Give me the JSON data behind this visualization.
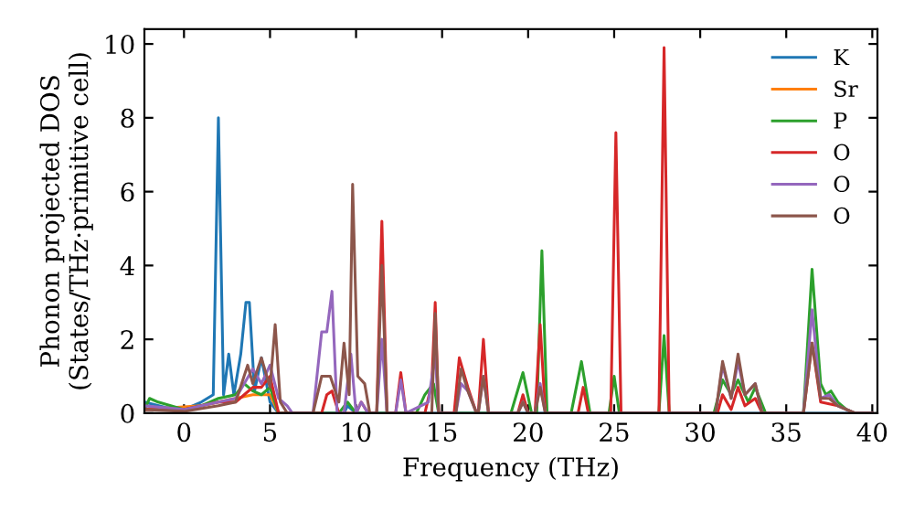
{
  "chart_data": {
    "type": "line",
    "xlabel": "Frequency (THz)",
    "ylabel": "Phonon projected DOS\n(States/THz·primitive cell)",
    "xlim": [
      -2.3,
      40.3
    ],
    "ylim": [
      0,
      10.4
    ],
    "xticks": [
      0,
      5,
      10,
      15,
      20,
      25,
      30,
      35,
      40
    ],
    "yticks": [
      0,
      2,
      4,
      6,
      8,
      10
    ],
    "grid": false,
    "legend": "top right",
    "marker": "none",
    "line_style": "solid",
    "series": [
      {
        "name": "K",
        "color": "#1f77b4",
        "x": [
          -2.3,
          -1,
          0,
          1,
          1.7,
          2,
          2.3,
          2.6,
          2.9,
          3.3,
          3.6,
          3.8,
          4.1,
          4.5,
          5,
          5.5,
          8,
          9.3,
          9.5,
          10,
          40
        ],
        "values": [
          0.3,
          0.15,
          0.1,
          0.3,
          0.5,
          8.0,
          0.5,
          1.6,
          0.5,
          1.6,
          3.0,
          3.0,
          0.6,
          1.5,
          0.3,
          0,
          0,
          0,
          0.2,
          0,
          0
        ]
      },
      {
        "name": "Sr",
        "color": "#ff7f0e",
        "x": [
          -2.3,
          1,
          3,
          4,
          5,
          5.5
        ],
        "values": [
          0.1,
          0.2,
          0.4,
          0.5,
          0.5,
          0
        ]
      },
      {
        "name": "P",
        "color": "#2ca02c",
        "x": [
          -2.3,
          -2,
          -1.5,
          0,
          1,
          2,
          3,
          3.5,
          4,
          4.5,
          5,
          5.5,
          9,
          9.5,
          10,
          13.5,
          14,
          14.5,
          14.8,
          19,
          19.7,
          20.2,
          20.5,
          20.8,
          21.1,
          22.5,
          23.1,
          23.6,
          24.7,
          25,
          25.3,
          27.6,
          27.9,
          28.2,
          30.8,
          31.3,
          31.8,
          32.2,
          32.8,
          33.2,
          33.8,
          36,
          36.5,
          37,
          37.3,
          37.6,
          38,
          38.5,
          39,
          40
        ],
        "values": [
          0.1,
          0.4,
          0.3,
          0.1,
          0.2,
          0.4,
          0.5,
          0.8,
          0.6,
          0.5,
          0.7,
          0,
          0,
          0.3,
          0,
          0,
          0.5,
          0.8,
          0,
          0,
          1.1,
          0,
          0,
          4.4,
          0,
          0,
          1.4,
          0,
          0,
          1.0,
          0,
          0,
          2.1,
          0,
          0,
          0.9,
          0.5,
          0.9,
          0.3,
          0.7,
          0,
          0,
          3.9,
          0.8,
          0.5,
          0.6,
          0.3,
          0.1,
          0,
          0
        ]
      },
      {
        "name": "O",
        "color": "#d62728",
        "x": [
          -2.3,
          0,
          1,
          2,
          3,
          3.5,
          4,
          4.5,
          5,
          5.5,
          8,
          8.3,
          8.6,
          9,
          10,
          10.3,
          10.7,
          11.2,
          11.5,
          11.8,
          12.3,
          12.6,
          12.9,
          14,
          14.4,
          14.6,
          14.8,
          15.7,
          16,
          16.5,
          17,
          17.1,
          17.4,
          17.7,
          19.4,
          19.7,
          20,
          20.4,
          20.7,
          21,
          22.9,
          23.2,
          23.5,
          24.8,
          25.1,
          25.4,
          27.6,
          27.9,
          28.2,
          31,
          31.3,
          31.8,
          32.2,
          32.6,
          33.2,
          33.6,
          36,
          36.5,
          37,
          38,
          39,
          40
        ],
        "values": [
          0.1,
          0.1,
          0.2,
          0.3,
          0.3,
          0.5,
          0.7,
          0.7,
          1.0,
          0,
          0,
          0.5,
          0.6,
          0,
          0,
          0.3,
          0,
          0,
          5.2,
          0,
          0,
          1.1,
          0,
          0,
          0.8,
          3.0,
          0,
          0,
          1.5,
          0.7,
          0,
          0,
          2.0,
          0,
          0,
          0.5,
          0,
          0,
          2.4,
          0,
          0,
          0.7,
          0,
          0,
          7.6,
          0,
          0,
          9.9,
          0,
          0,
          0.5,
          0.1,
          0.7,
          0.2,
          0.4,
          0,
          0,
          1.9,
          0.3,
          0.2,
          0,
          0
        ]
      },
      {
        "name": "O",
        "color": "#9467bd",
        "x": [
          -2.3,
          0,
          2,
          3,
          4,
          4.5,
          5,
          5.5,
          6,
          6.3,
          7.5,
          8,
          8.3,
          8.6,
          8.9,
          9.3,
          9.7,
          10,
          10.3,
          10.7,
          11.2,
          11.5,
          11.8,
          12.3,
          12.6,
          12.9,
          14.2,
          14.6,
          14.8,
          15.8,
          16.1,
          16.5,
          17,
          17.1,
          17.4,
          17.7,
          19.4,
          19.7,
          20,
          20.4,
          20.7,
          21,
          30.9,
          31.3,
          31.8,
          32.2,
          32.6,
          33.2,
          33.6,
          36,
          36.5,
          37,
          37.5,
          38,
          39,
          40
        ],
        "values": [
          0.2,
          0.1,
          0.3,
          0.4,
          1.2,
          0.8,
          1.3,
          0.4,
          0.2,
          0,
          0,
          2.2,
          2.2,
          3.3,
          0,
          0,
          1.6,
          0,
          0.3,
          0,
          0,
          2.0,
          0,
          0,
          0.9,
          0,
          0.3,
          1.6,
          0,
          0,
          0.8,
          0.6,
          0,
          0,
          1.0,
          0,
          0,
          0.3,
          0,
          0,
          0.8,
          0,
          0,
          1.3,
          0.4,
          1.4,
          0.5,
          0.8,
          0,
          0,
          2.8,
          0.4,
          0.5,
          0.2,
          0,
          0
        ]
      },
      {
        "name": "O",
        "color": "#8c564b",
        "x": [
          -2.3,
          0,
          2,
          3,
          3.7,
          4,
          4.5,
          5,
          5.3,
          5.6,
          6,
          7.5,
          8,
          8.5,
          9,
          9.3,
          9.6,
          9.8,
          10.1,
          10.5,
          10.8,
          11.2,
          11.5,
          11.8,
          14.4,
          14.6,
          14.8,
          15.8,
          16.1,
          16.5,
          17,
          17.1,
          17.4,
          17.7,
          19.4,
          19.7,
          20,
          20.4,
          20.7,
          21,
          30.9,
          31.3,
          31.8,
          32.2,
          32.6,
          33.2,
          33.6,
          36,
          36.5,
          37,
          37.5,
          38,
          39,
          40
        ],
        "values": [
          0.1,
          0.05,
          0.2,
          0.3,
          1.3,
          0.8,
          1.5,
          0.7,
          2.4,
          0.3,
          0,
          0,
          1.0,
          1.0,
          0.3,
          1.9,
          0.5,
          6.2,
          1.0,
          0.8,
          0,
          0,
          4.0,
          0,
          0,
          2.7,
          0,
          0,
          1.2,
          0.6,
          0,
          0,
          1.0,
          0,
          0,
          0.3,
          0,
          0,
          0.7,
          0,
          0,
          1.4,
          0.4,
          1.6,
          0.5,
          0.8,
          0,
          0,
          1.9,
          0.4,
          0.4,
          0.2,
          0,
          0
        ]
      }
    ]
  }
}
